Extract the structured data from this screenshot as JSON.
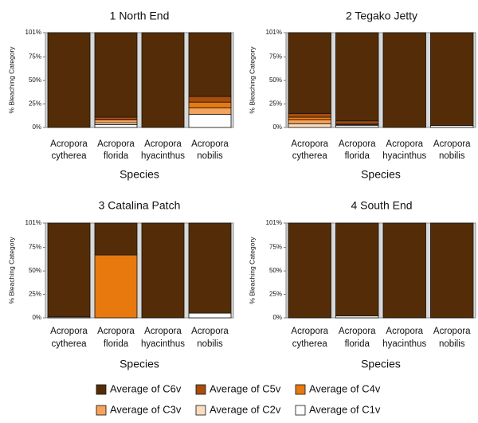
{
  "chart_data": [
    {
      "type": "bar",
      "stacked": true,
      "title": "1 North End",
      "xlabel": "Species",
      "ylabel": "% Bleaching Category",
      "ylim": [
        0,
        101
      ],
      "yticks": [
        "0%",
        "25%",
        "50%",
        "75%",
        "101%"
      ],
      "ytick_values": [
        0,
        25,
        50,
        75,
        101
      ],
      "grid": false,
      "categories": [
        [
          "Acropora",
          "cytherea"
        ],
        [
          "Acropora",
          "florida"
        ],
        [
          "Acropora",
          "hyacinthus"
        ],
        [
          "Acropora",
          "nobilis"
        ]
      ],
      "series": [
        {
          "name": "Average of C1v",
          "values": [
            0,
            3,
            0,
            14
          ]
        },
        {
          "name": "Average of C2v",
          "values": [
            0,
            2,
            0,
            0
          ]
        },
        {
          "name": "Average of C3v",
          "values": [
            0,
            3,
            0,
            7
          ]
        },
        {
          "name": "Average of C4v",
          "values": [
            0,
            0,
            0,
            6
          ]
        },
        {
          "name": "Average of C5v",
          "values": [
            0,
            3,
            0,
            6
          ]
        },
        {
          "name": "Average of C6v",
          "values": [
            101,
            90,
            101,
            68
          ]
        }
      ]
    },
    {
      "type": "bar",
      "stacked": true,
      "title": "2 Tegako Jetty",
      "xlabel": "Species",
      "ylabel": "% Bleaching Category",
      "ylim": [
        0,
        101
      ],
      "yticks": [
        "0%",
        "25%",
        "50%",
        "75%",
        "101%"
      ],
      "ytick_values": [
        0,
        25,
        50,
        75,
        101
      ],
      "grid": false,
      "categories": [
        [
          "Acropora",
          "cytherea"
        ],
        [
          "Acropora",
          "florida"
        ],
        [
          "Acropora",
          "hyacinthus"
        ],
        [
          "Acropora",
          "nobilis"
        ]
      ],
      "series": [
        {
          "name": "Average of C1v",
          "values": [
            0,
            2,
            0,
            2
          ]
        },
        {
          "name": "Average of C2v",
          "values": [
            4,
            1,
            0,
            0
          ]
        },
        {
          "name": "Average of C3v",
          "values": [
            4,
            1,
            0,
            0
          ]
        },
        {
          "name": "Average of C4v",
          "values": [
            3,
            0,
            0,
            0
          ]
        },
        {
          "name": "Average of C5v",
          "values": [
            4,
            3,
            0,
            0
          ]
        },
        {
          "name": "Average of C6v",
          "values": [
            86,
            94,
            101,
            99
          ]
        }
      ]
    },
    {
      "type": "bar",
      "stacked": true,
      "title": "3 Catalina Patch",
      "xlabel": "Species",
      "ylabel": "% Bleaching Category",
      "ylim": [
        0,
        101
      ],
      "yticks": [
        "0%",
        "25%",
        "50%",
        "75%",
        "101%"
      ],
      "ytick_values": [
        0,
        25,
        50,
        75,
        101
      ],
      "grid": false,
      "categories": [
        [
          "Acropora",
          "cytherea"
        ],
        [
          "Acropora",
          "florida"
        ],
        [
          "Acropora",
          "hyacinthus"
        ],
        [
          "Acropora",
          "nobilis"
        ]
      ],
      "series": [
        {
          "name": "Average of C1v",
          "values": [
            1,
            0,
            0,
            5
          ]
        },
        {
          "name": "Average of C2v",
          "values": [
            0,
            0,
            0,
            0
          ]
        },
        {
          "name": "Average of C3v",
          "values": [
            0,
            0,
            0,
            0
          ]
        },
        {
          "name": "Average of C4v",
          "values": [
            0,
            67,
            0,
            0
          ]
        },
        {
          "name": "Average of C5v",
          "values": [
            0,
            0,
            0,
            0
          ]
        },
        {
          "name": "Average of C6v",
          "values": [
            100,
            34,
            101,
            96
          ]
        }
      ]
    },
    {
      "type": "bar",
      "stacked": true,
      "title": "4 South End",
      "xlabel": "Species",
      "ylabel": "% Bleaching Category",
      "ylim": [
        0,
        101
      ],
      "yticks": [
        "0%",
        "25%",
        "50%",
        "75%",
        "101%"
      ],
      "ytick_values": [
        0,
        25,
        50,
        75,
        101
      ],
      "grid": false,
      "categories": [
        [
          "Acropora",
          "cytherea"
        ],
        [
          "Acropora",
          "florida"
        ],
        [
          "Acropora",
          "hyacinthus"
        ],
        [
          "Acropora",
          "nobilis"
        ]
      ],
      "series": [
        {
          "name": "Average of C1v",
          "values": [
            0,
            2,
            0,
            0
          ]
        },
        {
          "name": "Average of C2v",
          "values": [
            0,
            0,
            0,
            0
          ]
        },
        {
          "name": "Average of C3v",
          "values": [
            0,
            0,
            0,
            0
          ]
        },
        {
          "name": "Average of C4v",
          "values": [
            0,
            0,
            0,
            0
          ]
        },
        {
          "name": "Average of C5v",
          "values": [
            0,
            0,
            0,
            0
          ]
        },
        {
          "name": "Average of C6v",
          "values": [
            101,
            99,
            101,
            101
          ]
        }
      ]
    }
  ],
  "colors": {
    "Average of C6v": "#542d08",
    "Average of C5v": "#a94c0d",
    "Average of C4v": "#e8790e",
    "Average of C3v": "#f5a35a",
    "Average of C2v": "#fbdcc0",
    "Average of C1v": "#ffffff"
  },
  "legend": {
    "placement": "bottom",
    "items": [
      "Average of C6v",
      "Average of C5v",
      "Average of C4v",
      "Average of C3v",
      "Average of C2v",
      "Average of C1v"
    ]
  }
}
